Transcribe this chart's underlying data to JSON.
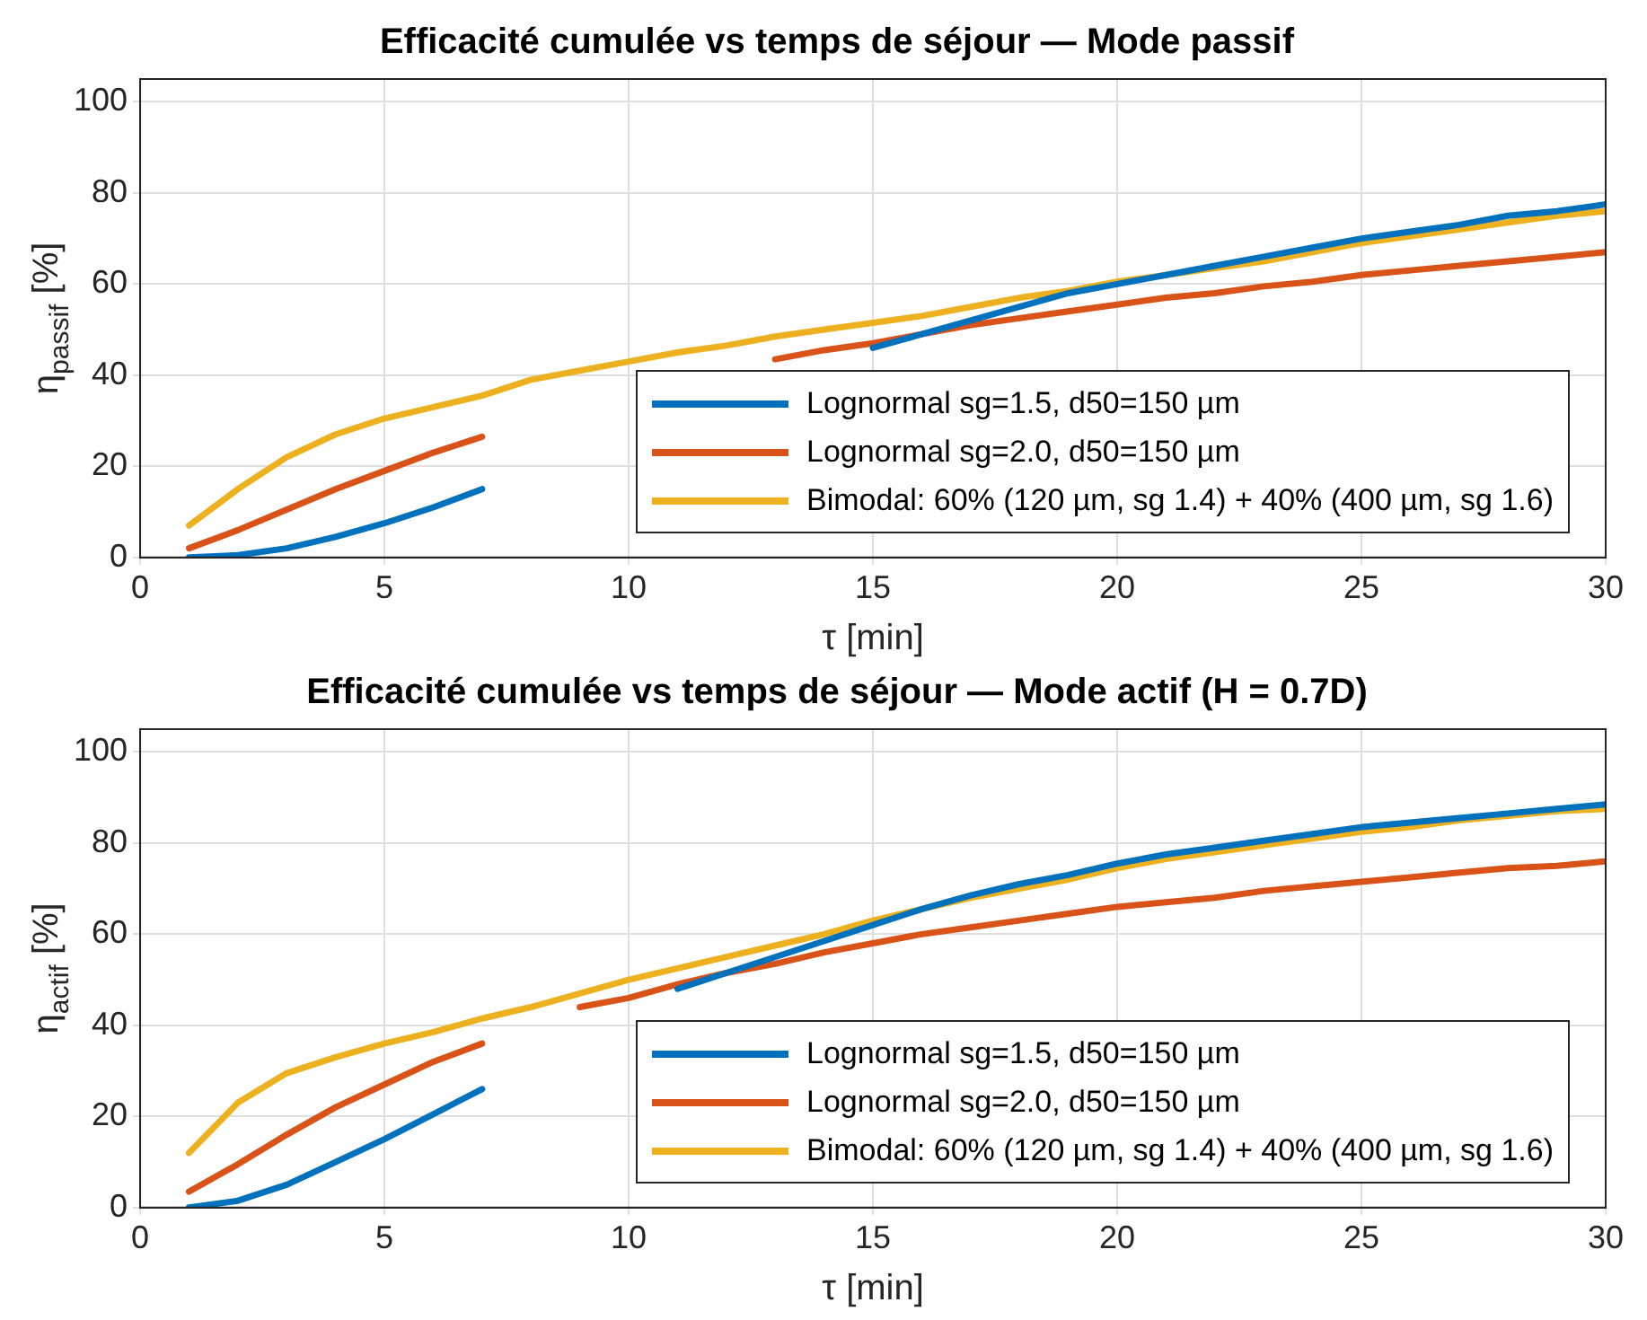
{
  "chart_data": [
    {
      "type": "line",
      "title": "Efficacité cumulée vs temps de séjour — Mode passif",
      "xlabel": "τ [min]",
      "ylabel": "η$_{passif}$ [%]",
      "xlim": [
        0,
        30
      ],
      "xticks": [
        0,
        5,
        10,
        15,
        20,
        25,
        30
      ],
      "ylim": [
        0,
        105
      ],
      "yticks": [
        0,
        20,
        40,
        60,
        80,
        100
      ],
      "grid": true,
      "legend": "bottom right",
      "x": [
        1,
        2,
        3,
        4,
        5,
        6,
        7,
        8,
        9,
        10,
        11,
        12,
        13,
        14,
        15,
        16,
        17,
        18,
        19,
        20,
        21,
        22,
        23,
        24,
        25,
        26,
        27,
        28,
        29,
        30
      ],
      "series": [
        {
          "name": "Lognormal sg=1.5, d50=150 µm",
          "color": "#0072bd",
          "values": [
            0,
            0.5,
            2,
            4.5,
            7.5,
            11,
            15,
            null,
            null,
            null,
            null,
            null,
            null,
            null,
            46,
            49,
            52,
            55,
            58,
            60,
            62,
            64,
            66,
            68,
            70,
            71.5,
            73,
            75,
            76,
            77.5
          ]
        },
        {
          "name": "Lognormal sg=2.0, d50=150 µm",
          "color": "#d95319",
          "values": [
            2,
            6,
            10.5,
            15,
            19,
            23,
            26.5,
            null,
            null,
            null,
            null,
            null,
            43.5,
            45.5,
            47,
            49,
            51,
            52.5,
            54,
            55.5,
            57,
            58,
            59.5,
            60.5,
            62,
            63,
            64,
            65,
            66,
            67
          ]
        },
        {
          "name": "Bimodal: 60% (120 µm, sg 1.4) + 40% (400 µm, sg 1.6)",
          "color": "#edb120",
          "values": [
            7,
            15,
            22,
            27,
            30.5,
            33,
            35.5,
            39,
            41,
            43,
            45,
            46.5,
            48.5,
            50,
            51.5,
            53,
            55,
            57,
            58.5,
            60.5,
            62,
            63.5,
            65,
            67,
            69,
            70.5,
            72,
            73.5,
            75,
            76
          ]
        }
      ]
    },
    {
      "type": "line",
      "title": "Efficacité cumulée vs temps de séjour — Mode actif (H = 0.7D)",
      "xlabel": "τ [min]",
      "ylabel": "η$_{actif}$ [%]",
      "xlim": [
        0,
        30
      ],
      "xticks": [
        0,
        5,
        10,
        15,
        20,
        25,
        30
      ],
      "ylim": [
        0,
        105
      ],
      "yticks": [
        0,
        20,
        40,
        60,
        80,
        100
      ],
      "grid": true,
      "legend": "bottom right",
      "x": [
        1,
        2,
        3,
        4,
        5,
        6,
        7,
        8,
        9,
        10,
        11,
        12,
        13,
        14,
        15,
        16,
        17,
        18,
        19,
        20,
        21,
        22,
        23,
        24,
        25,
        26,
        27,
        28,
        29,
        30
      ],
      "series": [
        {
          "name": "Lognormal sg=1.5, d50=150 µm",
          "color": "#0072bd",
          "values": [
            0,
            1.5,
            5,
            10,
            15,
            20.5,
            26,
            null,
            null,
            null,
            48,
            51.5,
            55,
            58.5,
            62,
            65.5,
            68.5,
            71,
            73,
            75.5,
            77.5,
            79,
            80.5,
            82,
            83.5,
            84.5,
            85.5,
            86.5,
            87.5,
            88.5
          ]
        },
        {
          "name": "Lognormal sg=2.0, d50=150 µm",
          "color": "#d95319",
          "values": [
            3.5,
            9.5,
            16,
            22,
            27,
            32,
            36,
            null,
            44,
            46,
            49,
            51.5,
            53.5,
            56,
            58,
            60,
            61.5,
            63,
            64.5,
            66,
            67,
            68,
            69.5,
            70.5,
            71.5,
            72.5,
            73.5,
            74.5,
            75,
            76
          ]
        },
        {
          "name": "Bimodal: 60% (120 µm, sg 1.4) + 40% (400 µm, sg 1.6)",
          "color": "#edb120",
          "values": [
            12,
            23,
            29.5,
            33,
            36,
            38.5,
            41.5,
            44,
            47,
            50,
            52.5,
            55,
            57.5,
            60,
            63,
            65.5,
            68,
            70,
            72,
            74.5,
            76.5,
            78,
            79.5,
            81,
            82.5,
            83.5,
            85,
            86,
            87,
            87.5
          ]
        }
      ]
    }
  ]
}
